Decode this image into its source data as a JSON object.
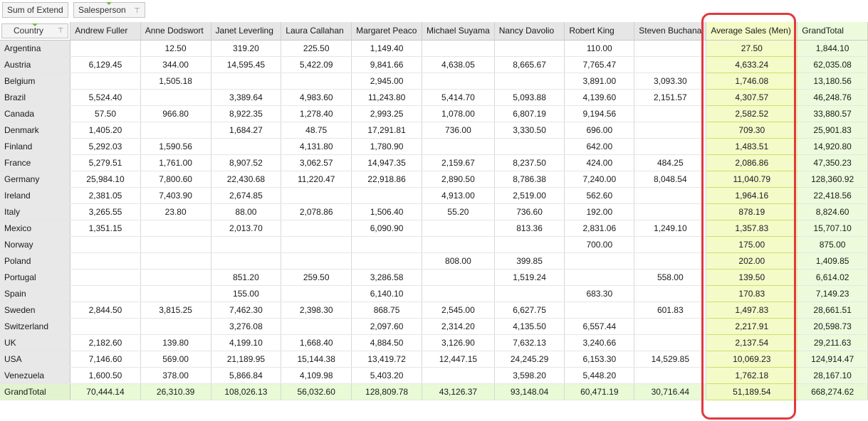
{
  "toolbar": {
    "sum_label": "Sum of Extend",
    "salesperson_label": "Salesperson",
    "funnel_glyph": "⊤"
  },
  "grid": {
    "row_header_label": "Country",
    "columns": [
      "Andrew Fuller",
      "Anne Dodswort",
      "Janet Leverling",
      "Laura Callahan",
      "Margaret Peaco",
      "Michael Suyama",
      "Nancy Davolio",
      "Robert King",
      "Steven Buchana",
      "Average Sales (Men)",
      "GrandTotal"
    ],
    "rows": [
      {
        "country": "Argentina",
        "values": [
          "",
          "12.50",
          "319.20",
          "225.50",
          "1,149.40",
          "",
          "",
          "110.00",
          "",
          "27.50",
          "1,844.10"
        ]
      },
      {
        "country": "Austria",
        "values": [
          "6,129.45",
          "344.00",
          "14,595.45",
          "5,422.09",
          "9,841.66",
          "4,638.05",
          "8,665.67",
          "7,765.47",
          "",
          "4,633.24",
          "62,035.08"
        ]
      },
      {
        "country": "Belgium",
        "values": [
          "",
          "1,505.18",
          "",
          "",
          "2,945.00",
          "",
          "",
          "3,891.00",
          "3,093.30",
          "1,746.08",
          "13,180.56"
        ]
      },
      {
        "country": "Brazil",
        "values": [
          "5,524.40",
          "",
          "3,389.64",
          "4,983.60",
          "11,243.80",
          "5,414.70",
          "5,093.88",
          "4,139.60",
          "2,151.57",
          "4,307.57",
          "46,248.76"
        ]
      },
      {
        "country": "Canada",
        "values": [
          "57.50",
          "966.80",
          "8,922.35",
          "1,278.40",
          "2,993.25",
          "1,078.00",
          "6,807.19",
          "9,194.56",
          "",
          "2,582.52",
          "33,880.57"
        ]
      },
      {
        "country": "Denmark",
        "values": [
          "1,405.20",
          "",
          "1,684.27",
          "48.75",
          "17,291.81",
          "736.00",
          "3,330.50",
          "696.00",
          "",
          "709.30",
          "25,901.83"
        ]
      },
      {
        "country": "Finland",
        "values": [
          "5,292.03",
          "1,590.56",
          "",
          "4,131.80",
          "1,780.90",
          "",
          "",
          "642.00",
          "",
          "1,483.51",
          "14,920.80"
        ]
      },
      {
        "country": "France",
        "values": [
          "5,279.51",
          "1,761.00",
          "8,907.52",
          "3,062.57",
          "14,947.35",
          "2,159.67",
          "8,237.50",
          "424.00",
          "484.25",
          "2,086.86",
          "47,350.23"
        ]
      },
      {
        "country": "Germany",
        "values": [
          "25,984.10",
          "7,800.60",
          "22,430.68",
          "11,220.47",
          "22,918.86",
          "2,890.50",
          "8,786.38",
          "7,240.00",
          "8,048.54",
          "11,040.79",
          "128,360.92"
        ]
      },
      {
        "country": "Ireland",
        "values": [
          "2,381.05",
          "7,403.90",
          "2,674.85",
          "",
          "",
          "4,913.00",
          "2,519.00",
          "562.60",
          "",
          "1,964.16",
          "22,418.56"
        ]
      },
      {
        "country": "Italy",
        "values": [
          "3,265.55",
          "23.80",
          "88.00",
          "2,078.86",
          "1,506.40",
          "55.20",
          "736.60",
          "192.00",
          "",
          "878.19",
          "8,824.60"
        ]
      },
      {
        "country": "Mexico",
        "values": [
          "1,351.15",
          "",
          "2,013.70",
          "",
          "6,090.90",
          "",
          "813.36",
          "2,831.06",
          "1,249.10",
          "1,357.83",
          "15,707.10"
        ]
      },
      {
        "country": "Norway",
        "values": [
          "",
          "",
          "",
          "",
          "",
          "",
          "",
          "700.00",
          "",
          "175.00",
          "875.00"
        ]
      },
      {
        "country": "Poland",
        "values": [
          "",
          "",
          "",
          "",
          "",
          "808.00",
          "399.85",
          "",
          "",
          "202.00",
          "1,409.85"
        ]
      },
      {
        "country": "Portugal",
        "values": [
          "",
          "",
          "851.20",
          "259.50",
          "3,286.58",
          "",
          "1,519.24",
          "",
          "558.00",
          "139.50",
          "6,614.02"
        ]
      },
      {
        "country": "Spain",
        "values": [
          "",
          "",
          "155.00",
          "",
          "6,140.10",
          "",
          "",
          "683.30",
          "",
          "170.83",
          "7,149.23"
        ]
      },
      {
        "country": "Sweden",
        "values": [
          "2,844.50",
          "3,815.25",
          "7,462.30",
          "2,398.30",
          "868.75",
          "2,545.00",
          "6,627.75",
          "",
          "601.83",
          "1,497.83",
          "28,661.51"
        ]
      },
      {
        "country": "Switzerland",
        "values": [
          "",
          "",
          "3,276.08",
          "",
          "2,097.60",
          "2,314.20",
          "4,135.50",
          "6,557.44",
          "",
          "2,217.91",
          "20,598.73"
        ]
      },
      {
        "country": "UK",
        "values": [
          "2,182.60",
          "139.80",
          "4,199.10",
          "1,668.40",
          "4,884.50",
          "3,126.90",
          "7,632.13",
          "3,240.66",
          "",
          "2,137.54",
          "29,211.63"
        ]
      },
      {
        "country": "USA",
        "values": [
          "7,146.60",
          "569.00",
          "21,189.95",
          "15,144.38",
          "13,419.72",
          "12,447.15",
          "24,245.29",
          "6,153.30",
          "14,529.85",
          "10,069.23",
          "124,914.47"
        ]
      },
      {
        "country": "Venezuela",
        "values": [
          "1,600.50",
          "378.00",
          "5,866.84",
          "4,109.98",
          "5,403.20",
          "",
          "3,598.20",
          "5,448.20",
          "",
          "1,762.18",
          "28,167.10"
        ]
      }
    ],
    "grand_total": {
      "label": "GrandTotal",
      "values": [
        "70,444.14",
        "26,310.39",
        "108,026.13",
        "56,032.60",
        "128,809.78",
        "43,126.37",
        "93,148.04",
        "60,471.19",
        "30,716.44",
        "51,189.54",
        "668,274.62"
      ]
    }
  },
  "colors": {
    "highlight_border": "#e0393e",
    "average_column_bg": "#f4fbc8",
    "grand_total_bg": "#ecfbdc",
    "field_indicator": "#7cb83a"
  }
}
